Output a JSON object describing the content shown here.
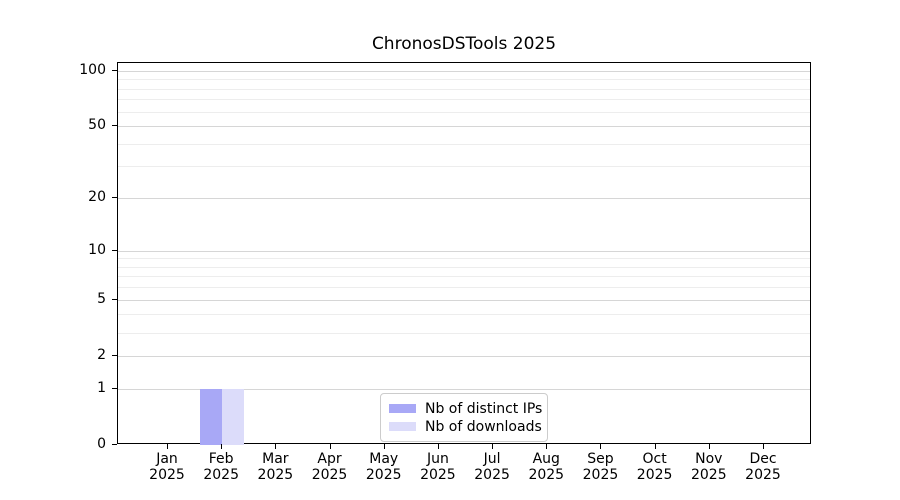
{
  "chart_data": {
    "type": "bar",
    "title": "ChronosDSTools 2025",
    "categories": [
      "Jan 2025",
      "Feb 2025",
      "Mar 2025",
      "Apr 2025",
      "May 2025",
      "Jun 2025",
      "Jul 2025",
      "Aug 2025",
      "Sep 2025",
      "Oct 2025",
      "Nov 2025",
      "Dec 2025"
    ],
    "months": [
      "Jan",
      "Feb",
      "Mar",
      "Apr",
      "May",
      "Jun",
      "Jul",
      "Aug",
      "Sep",
      "Oct",
      "Nov",
      "Dec"
    ],
    "year_label": "2025",
    "series": [
      {
        "name": "Nb of distinct IPs",
        "color": "#a8a8f6",
        "values": [
          0,
          1,
          0,
          0,
          0,
          0,
          0,
          0,
          0,
          0,
          0,
          0
        ]
      },
      {
        "name": "Nb of downloads",
        "color": "#dcdcfa",
        "values": [
          0,
          1,
          0,
          0,
          0,
          0,
          0,
          0,
          0,
          0,
          0,
          0
        ]
      }
    ],
    "xlabel": "",
    "ylabel": "",
    "y_axis": {
      "scale": "log1p",
      "major_ticks": [
        0,
        1,
        2,
        5,
        10,
        20,
        50,
        100
      ],
      "minor_ticks": [
        3,
        4,
        6,
        7,
        8,
        9,
        30,
        40,
        60,
        70,
        80,
        90
      ],
      "ylim": [
        0,
        110
      ]
    },
    "grid": "on",
    "legend_position": "lower center"
  },
  "colors": {
    "grid_major": "#d6d6d6",
    "grid_minor": "#ededed",
    "axis": "#000000",
    "legend_border": "#cccccc",
    "background": "#ffffff"
  }
}
